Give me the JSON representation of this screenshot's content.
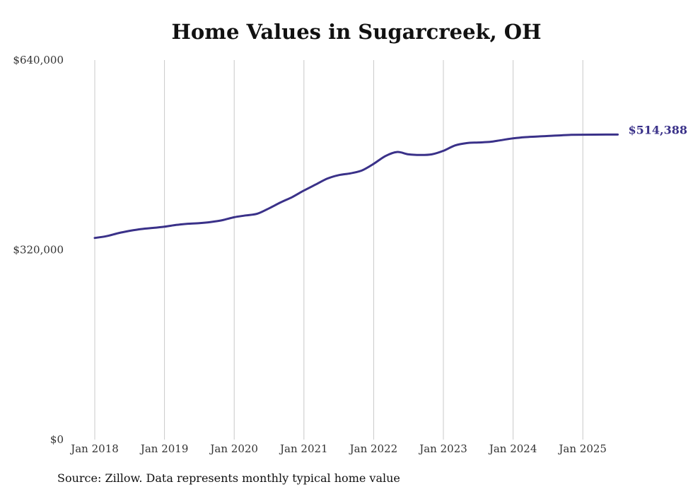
{
  "chart_data": {
    "type": "line",
    "title": "Home Values in Sugarcreek, OH",
    "xlabel": "",
    "ylabel": "",
    "x_ticks": [
      "Jan 2018",
      "Jan 2019",
      "Jan 2020",
      "Jan 2021",
      "Jan 2022",
      "Jan 2023",
      "Jan 2024",
      "Jan 2025"
    ],
    "y_ticks": [
      "$0",
      "$320,000",
      "$640,000"
    ],
    "ylim": [
      0,
      640000
    ],
    "xlim": [
      "2018-01",
      "2025-07"
    ],
    "grid": "vertical",
    "line_color": "#3a3189",
    "end_label": "$514,388",
    "series": [
      {
        "x": [
          "2018-01",
          "2018-03",
          "2018-05",
          "2018-07",
          "2018-09",
          "2018-11",
          "2019-01",
          "2019-03",
          "2019-05",
          "2019-07",
          "2019-09",
          "2019-11",
          "2020-01",
          "2020-03",
          "2020-05",
          "2020-07",
          "2020-09",
          "2020-11",
          "2021-01",
          "2021-03",
          "2021-05",
          "2021-07",
          "2021-09",
          "2021-11",
          "2022-01",
          "2022-03",
          "2022-05",
          "2022-07",
          "2022-09",
          "2022-11",
          "2023-01",
          "2023-03",
          "2023-05",
          "2023-07",
          "2023-09",
          "2023-11",
          "2024-01",
          "2024-03",
          "2024-05",
          "2024-07",
          "2024-09",
          "2024-11",
          "2025-01",
          "2025-03",
          "2025-05",
          "2025-07"
        ],
        "values": [
          340000,
          343000,
          348000,
          352000,
          355000,
          357000,
          359000,
          362000,
          364000,
          365000,
          367000,
          370000,
          375000,
          378000,
          381000,
          390000,
          400000,
          409000,
          420000,
          430000,
          440000,
          446000,
          449000,
          454000,
          465000,
          478000,
          485000,
          481000,
          480000,
          481000,
          487000,
          496000,
          500000,
          501000,
          502000,
          505000,
          508000,
          510000,
          511000,
          512000,
          513000,
          514000,
          514200,
          514300,
          514350,
          514388
        ]
      }
    ]
  },
  "source": "Source: Zillow. Data represents monthly typical home value"
}
